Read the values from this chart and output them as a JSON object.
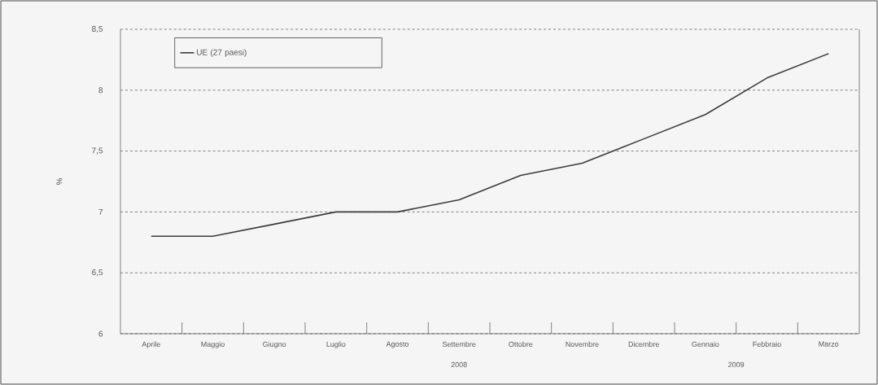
{
  "chart_data": {
    "type": "line",
    "ylabel": "%",
    "categories": [
      "Aprile",
      "Maggio",
      "Giugno",
      "Luglio",
      "Agosto",
      "Settembre",
      "Ottobre",
      "Novembre",
      "Dicembre",
      "Gennaio",
      "Febbraio",
      "Marzo"
    ],
    "series": [
      {
        "name": "UE (27 paesi)",
        "color": "#3c3c3c",
        "values": [
          6.8,
          6.8,
          6.9,
          7.0,
          7.0,
          7.1,
          7.3,
          7.4,
          7.6,
          7.8,
          8.1,
          8.3
        ]
      }
    ],
    "ylim": [
      6,
      8.5
    ],
    "yticks": [
      6,
      {
        "value": 6.5,
        "label": "6,5"
      },
      7,
      {
        "value": 7.5,
        "label": "7,5"
      },
      8,
      {
        "value": 8.5,
        "label": "8,5"
      }
    ],
    "grid": "y",
    "legend": "top left",
    "marker": "none",
    "line_style": "solid",
    "annotations": [
      "2008",
      "2009"
    ]
  }
}
